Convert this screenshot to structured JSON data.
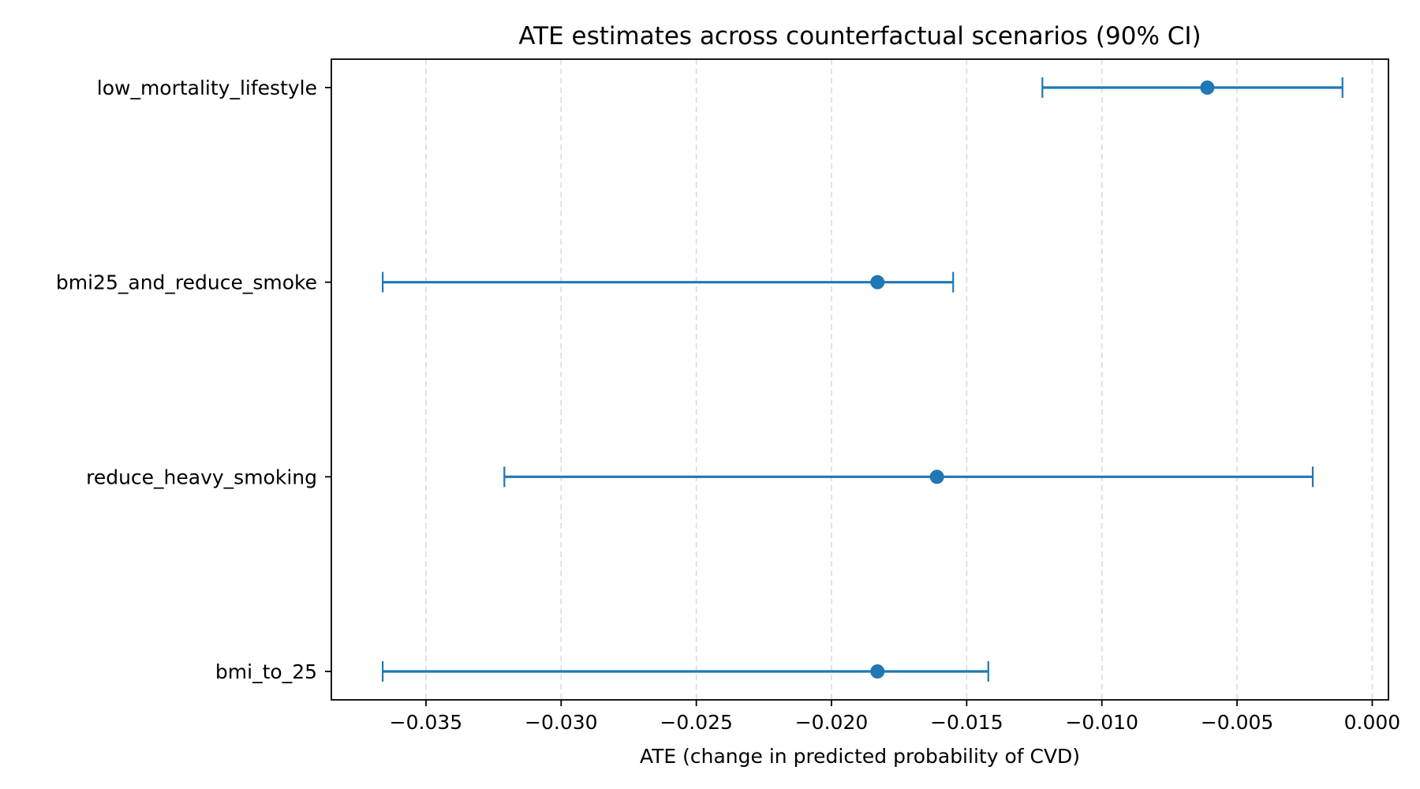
{
  "chart_data": {
    "type": "errorbar",
    "title": "ATE estimates across counterfactual scenarios (90% CI)",
    "xlabel": "ATE (change in predicted probability of CVD)",
    "ylabel": "",
    "xlim": [
      -0.0385,
      0.0006
    ],
    "xticks": [
      -0.035,
      -0.03,
      -0.025,
      -0.02,
      -0.015,
      -0.01,
      -0.005,
      0.0
    ],
    "xtick_labels": [
      "−0.035",
      "−0.030",
      "−0.025",
      "−0.020",
      "−0.015",
      "−0.010",
      "−0.005",
      "0.000"
    ],
    "grid": "x-dashed",
    "color": "#1f77b4",
    "series": [
      {
        "label": "low_mortality_lifestyle",
        "ate": -0.0061,
        "ci_low": -0.0122,
        "ci_high": -0.0011
      },
      {
        "label": "bmi25_and_reduce_smoke",
        "ate": -0.0183,
        "ci_low": -0.0366,
        "ci_high": -0.0155
      },
      {
        "label": "reduce_heavy_smoking",
        "ate": -0.0161,
        "ci_low": -0.0321,
        "ci_high": -0.0022
      },
      {
        "label": "bmi_to_25",
        "ate": -0.0183,
        "ci_low": -0.0366,
        "ci_high": -0.0142
      }
    ]
  }
}
